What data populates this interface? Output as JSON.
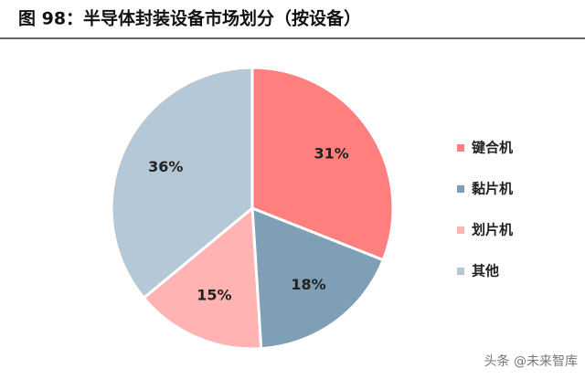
{
  "chart_data": {
    "type": "pie",
    "title": "图 98：半导体封装设备市场划分（按设备）",
    "categories": [
      "键合机",
      "黏片机",
      "划片机",
      "其他"
    ],
    "values": [
      31,
      18,
      15,
      36
    ],
    "value_labels": [
      "31%",
      "18%",
      "15%",
      "36%"
    ],
    "colors": [
      "#ff7f7f",
      "#7f9fb6",
      "#ffb3b3",
      "#b5c8d8"
    ],
    "legend": "right"
  },
  "watermark": "头条 @未来智库"
}
